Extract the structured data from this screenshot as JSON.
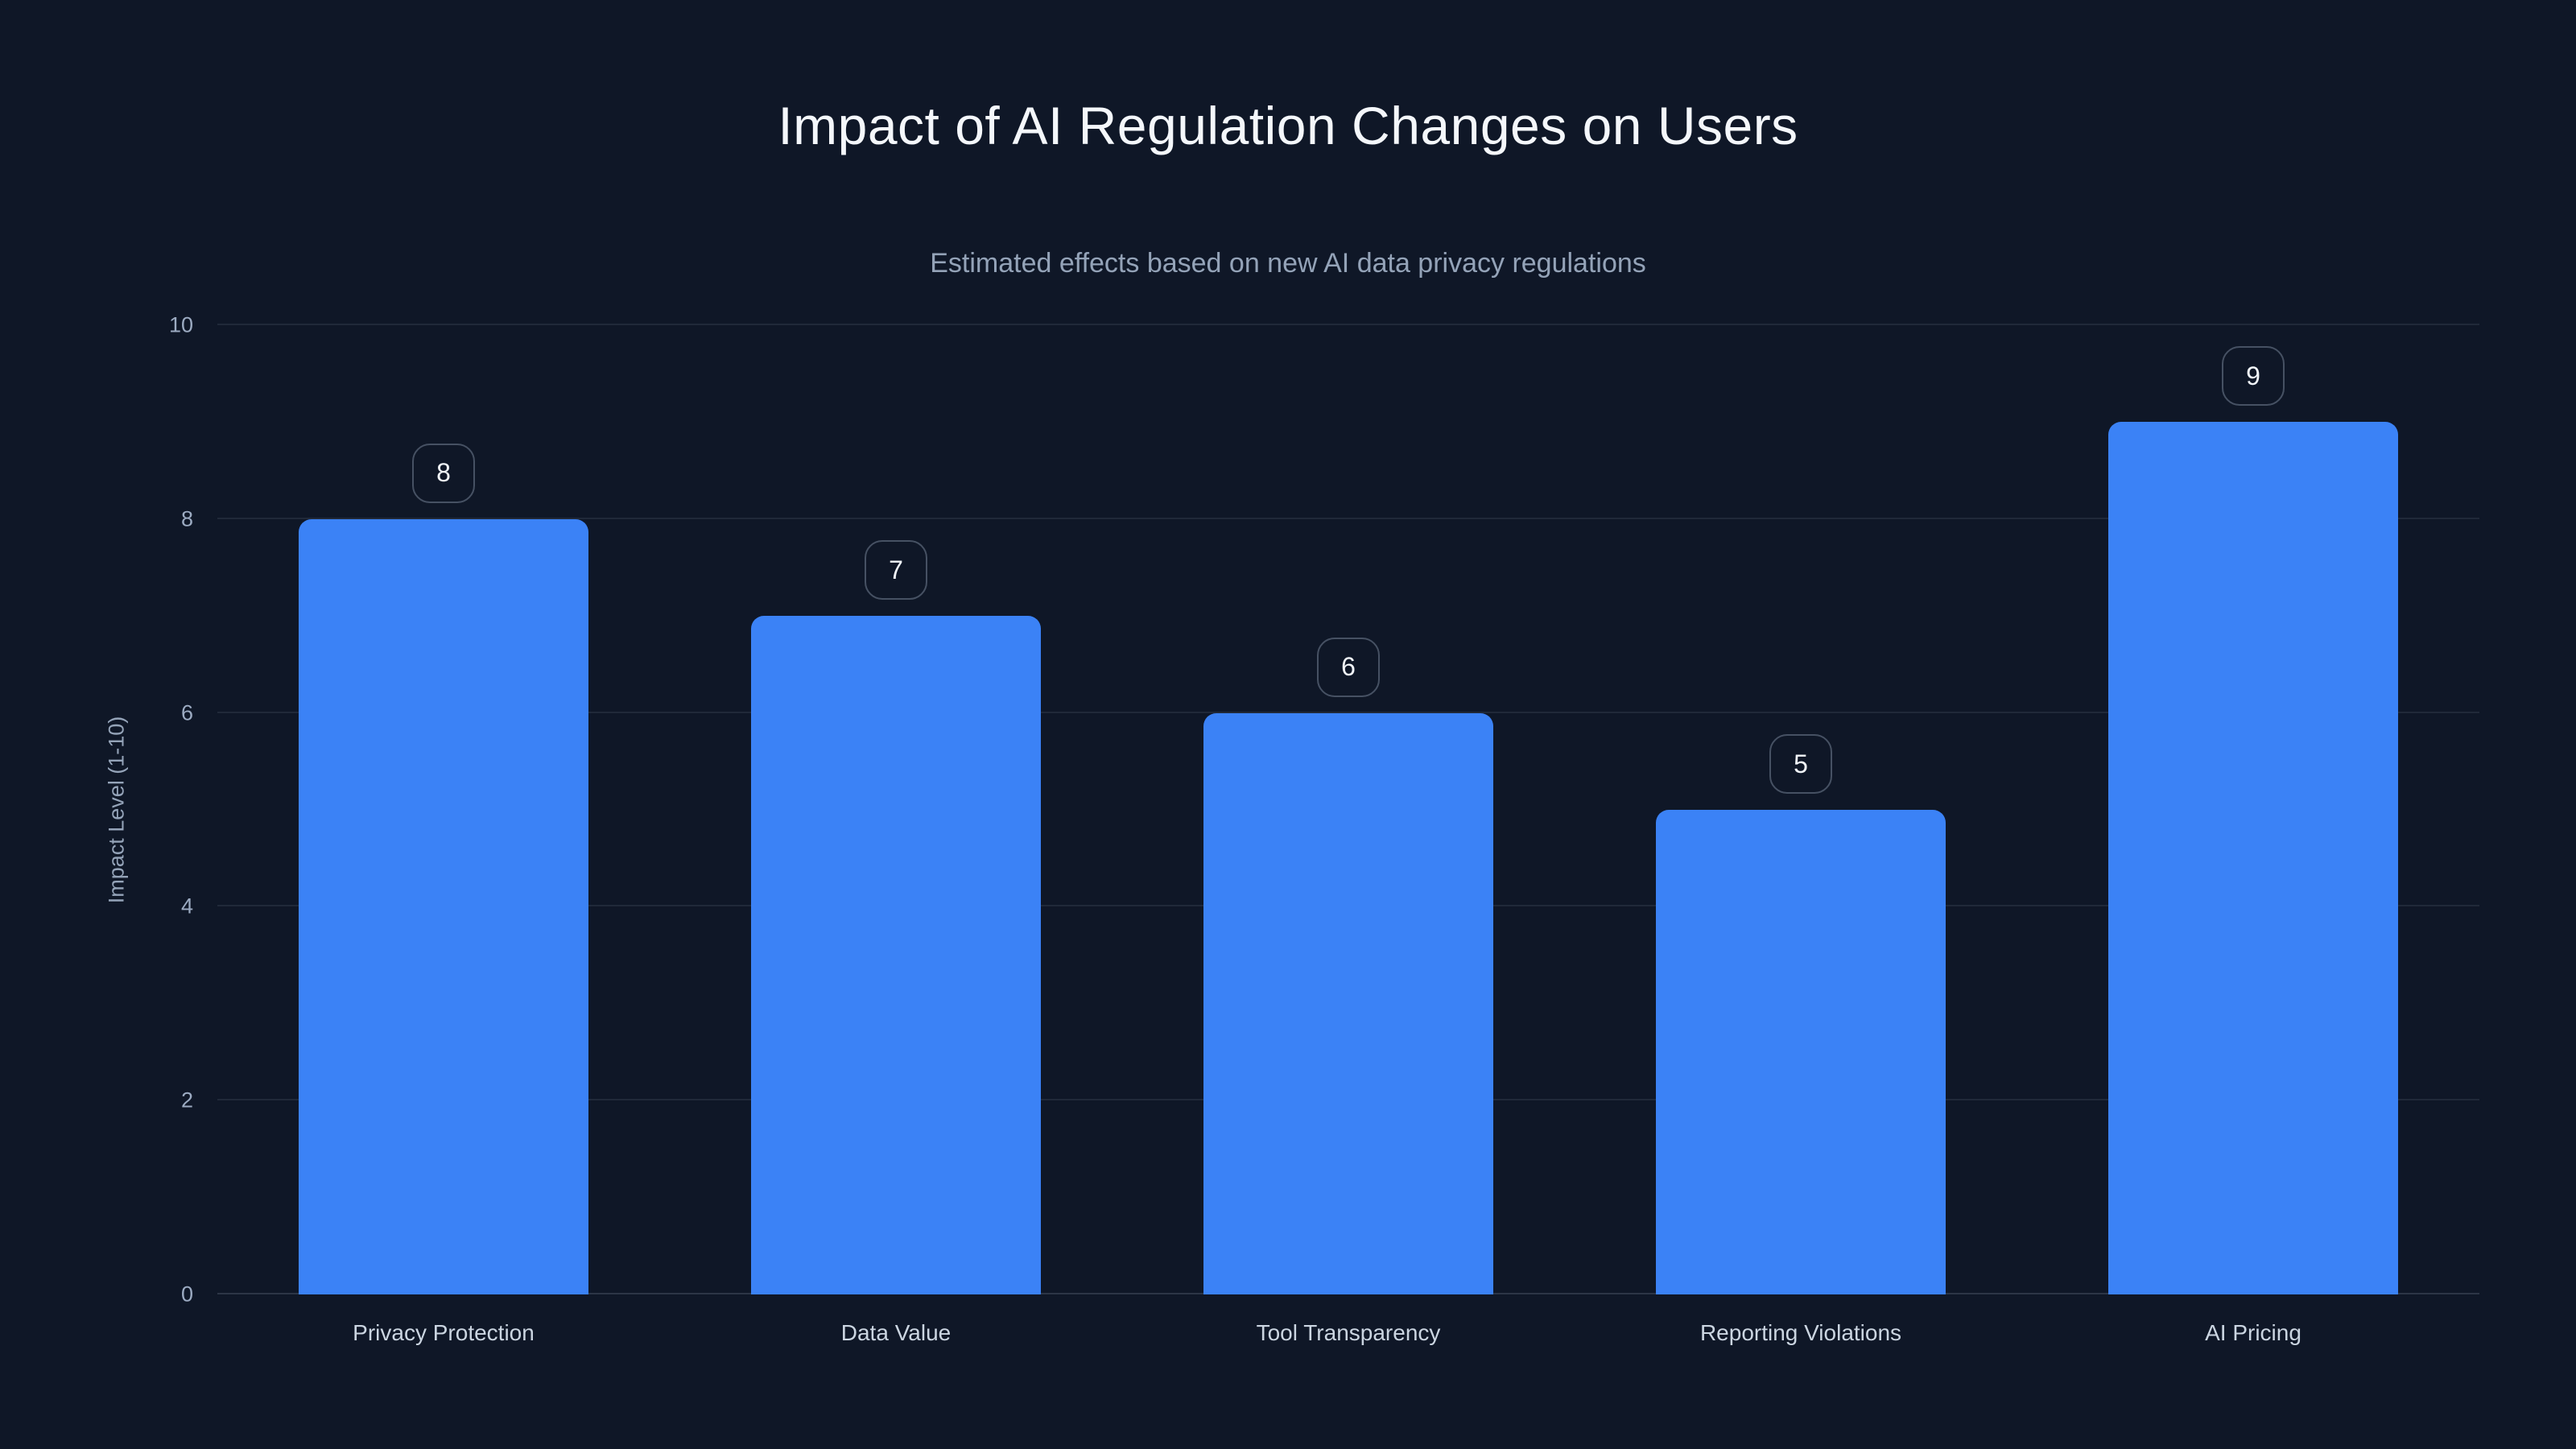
{
  "page": {
    "background_color": "#0f1727"
  },
  "header": {
    "title": "Impact of AI Regulation Changes on Users",
    "subtitle": "Estimated effects based on new AI data privacy regulations"
  },
  "chart_data": {
    "type": "bar",
    "title": "Impact of AI Regulation Changes on Users",
    "subtitle": "Estimated effects based on new AI data privacy regulations",
    "categories": [
      "Privacy Protection",
      "Data Value",
      "Tool Transparency",
      "Reporting Violations",
      "AI Pricing"
    ],
    "values": [
      8,
      7,
      6,
      5,
      9
    ],
    "value_labels": [
      "8",
      "7",
      "6",
      "5",
      "9"
    ],
    "xlabel": "",
    "ylabel": "Impact Level (1-10)",
    "ylim": [
      0,
      10
    ],
    "yticks": [
      0,
      2,
      4,
      6,
      8,
      10
    ],
    "grid": "horizontal-only",
    "legend_position": "none",
    "bar_color": "#3b82f6",
    "background_color": "#0f1727",
    "gridline_color": "rgba(148,163,184,0.13)",
    "title_color": "#f4f7fb",
    "subtitle_color": "#94a3b8",
    "tick_label_color": "#9cabc2",
    "category_label_color": "#cbd5e1",
    "value_badge_text_color": "#f1f5f9",
    "value_badge_border_color": "rgba(148,163,184,0.42)"
  }
}
